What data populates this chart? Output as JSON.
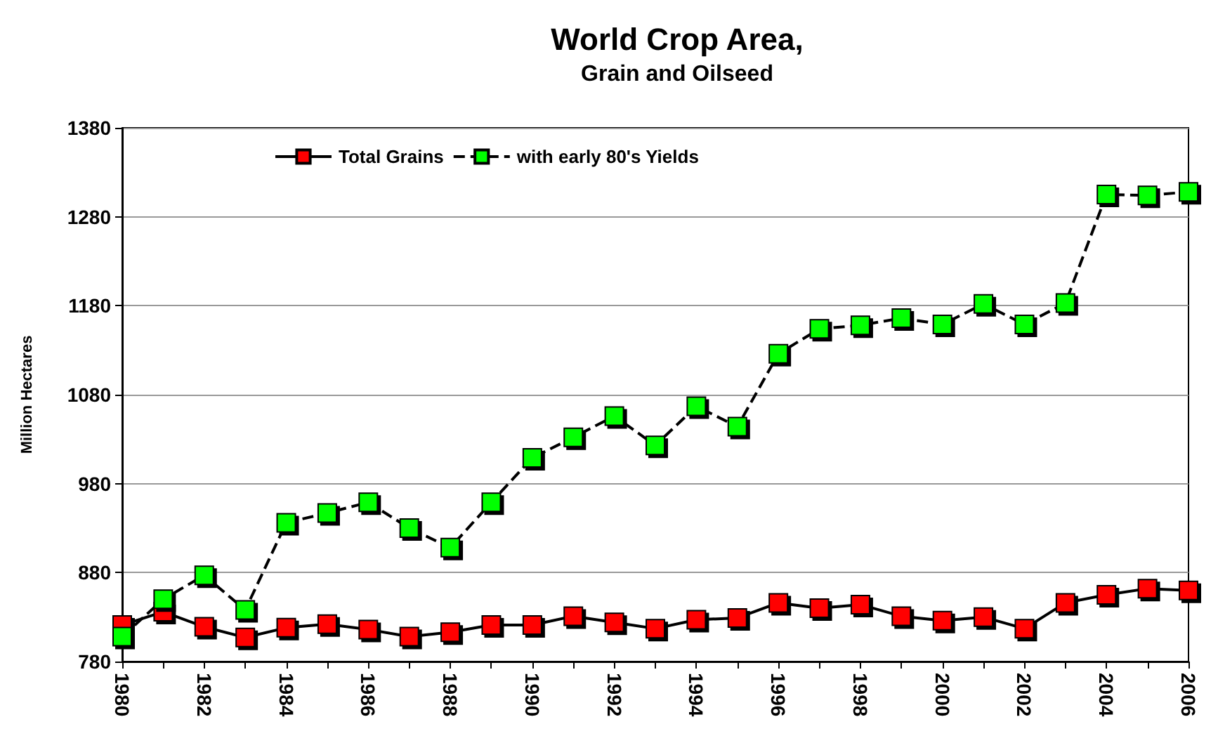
{
  "chart_data": {
    "type": "line",
    "title": "World Crop Area,",
    "subtitle": "Grain and Oilseed",
    "ylabel": "Million Hectares",
    "categories": [
      "1980",
      null,
      "1982",
      null,
      "1984",
      null,
      "1986",
      null,
      "1988",
      null,
      "1990",
      null,
      "1992",
      null,
      "1994",
      null,
      "1996",
      null,
      "1998",
      null,
      "2000",
      null,
      "2002",
      null,
      "2004",
      null,
      "2006"
    ],
    "series": [
      {
        "name": "Total Grains",
        "color": "#ff0000",
        "line_style": "solid",
        "values": [
          821,
          836,
          819,
          807,
          818,
          822,
          816,
          808,
          813,
          821,
          821,
          831,
          824,
          817,
          827,
          829,
          846,
          840,
          844,
          831,
          826,
          830,
          817,
          846,
          855,
          862,
          860
        ]
      },
      {
        "name": "with early 80's Yields",
        "color": "#00ff00",
        "line_style": "dashed",
        "values": [
          808,
          850,
          877,
          838,
          936,
          947,
          959,
          930,
          908,
          959,
          1009,
          1032,
          1056,
          1023,
          1067,
          1044,
          1126,
          1154,
          1158,
          1166,
          1159,
          1182,
          1159,
          1183,
          1305,
          1304,
          1308
        ]
      }
    ],
    "ylim": [
      780,
      1380
    ],
    "yticks": [
      780,
      880,
      980,
      1080,
      1180,
      1280,
      1380
    ],
    "grid": "y",
    "legend": "top",
    "marker": "square"
  }
}
